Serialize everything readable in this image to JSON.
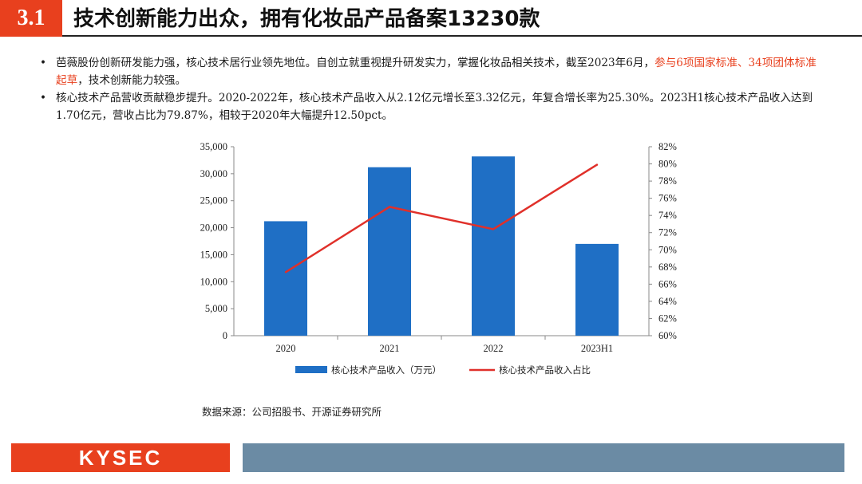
{
  "header": {
    "section_number": "3.1",
    "title": "技术创新能力出众，拥有化妆品产品备案13230款"
  },
  "bullets": [
    {
      "pre": "芭薇股份创新研发能力强，核心技术居行业领先地位。自创立就重视提升研发实力，掌握化妆品相关技术，截至2023年6月，",
      "highlight": "参与6项国家标准、34项团体标准起草",
      "post": "，技术创新能力较强。"
    },
    {
      "pre": "核心技术产品营收贡献稳步提升。2020-2022年，核心技术产品收入从2.12亿元增长至3.32亿元，年复合增长率为25.30%。2023H1核心技术产品收入达到1.70亿元，营收占比为79.87%，相较于2020年大幅提升12.50pct。",
      "highlight": "",
      "post": ""
    }
  ],
  "chart_data": {
    "type": "bar",
    "categories": [
      "2020",
      "2021",
      "2022",
      "2023H1"
    ],
    "series": [
      {
        "name": "核心技术产品收入（万元）",
        "type": "bar",
        "axis": "left",
        "color": "#1f6fc5",
        "values": [
          21200,
          31200,
          33200,
          17000
        ]
      },
      {
        "name": "核心技术产品收入占比",
        "type": "line",
        "axis": "right",
        "color": "#e0302a",
        "values": [
          67.4,
          75.0,
          72.4,
          79.9
        ]
      }
    ],
    "y_left": {
      "range": [
        0,
        35000
      ],
      "ticks": [
        "0",
        "5,000",
        "10,000",
        "15,000",
        "20,000",
        "25,000",
        "30,000",
        "35,000"
      ]
    },
    "y_right": {
      "range": [
        60,
        82
      ],
      "ticks": [
        "60%",
        "62%",
        "64%",
        "66%",
        "68%",
        "70%",
        "72%",
        "74%",
        "76%",
        "78%",
        "80%",
        "82%"
      ]
    },
    "legend_position": "bottom",
    "grid": false
  },
  "source": "数据来源：公司招股书、开源证券研究所",
  "footer": {
    "logo_text": "KYSEC"
  }
}
